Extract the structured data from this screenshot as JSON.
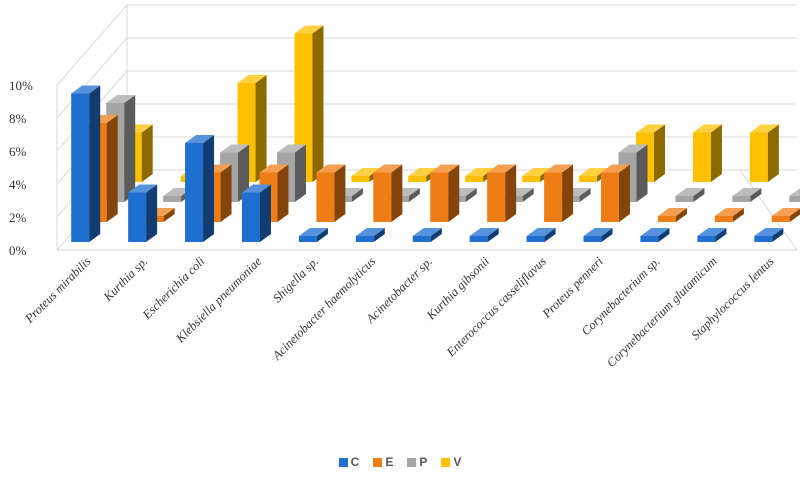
{
  "chart_data": {
    "type": "bar",
    "subtype": "3d-clustered-column",
    "title": "",
    "xlabel": "",
    "ylabel": "",
    "ylim": [
      0,
      10
    ],
    "y_ticks": [
      "0%",
      "2%",
      "4%",
      "6%",
      "8%",
      "10%"
    ],
    "grid": true,
    "legend_position": "bottom",
    "categories": [
      "Proteus mirabilis",
      "Kurthia sp.",
      "Escherichia coli",
      "Klebsiella pneumoniae",
      "Shigella sp.",
      "Acinetobacter haemolyticus",
      "Acinetobacter sp.",
      "Kurthia gibsonii",
      "Enterococcus casseliflavus",
      "Proteus penneri",
      "Corynebacterium sp.",
      "Corynebacterium glutamicum",
      "Staphylococcus lentus"
    ],
    "series": [
      {
        "name": "C",
        "color": "#1f6fd1",
        "values": [
          9,
          3,
          6,
          3,
          0,
          0,
          0,
          0,
          0,
          0,
          0,
          0,
          0
        ]
      },
      {
        "name": "E",
        "color": "#ef7d15",
        "values": [
          6,
          0,
          3,
          3,
          3,
          3,
          3,
          3,
          3,
          3,
          0,
          0,
          0
        ]
      },
      {
        "name": "P",
        "color": "#a5a5a5",
        "values": [
          6,
          0,
          3,
          3,
          0,
          0,
          0,
          0,
          0,
          3,
          0,
          0,
          0
        ]
      },
      {
        "name": "V",
        "color": "#ffc000",
        "values": [
          3,
          0,
          6,
          9,
          0,
          0,
          0,
          0,
          0,
          3,
          3,
          3,
          3
        ]
      }
    ]
  }
}
